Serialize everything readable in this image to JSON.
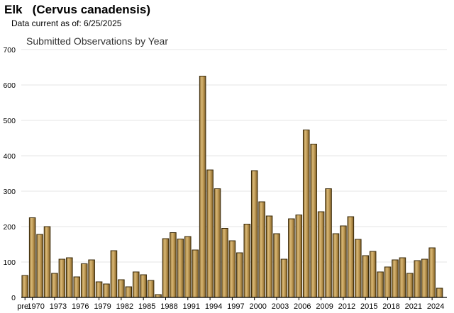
{
  "header": {
    "title": "Elk   (Cervus canadensis)",
    "subtitle": "Data current as of: 6/25/2025"
  },
  "chart_data": {
    "type": "bar",
    "title": "Submitted Observations by Year",
    "xlabel": "",
    "ylabel": "",
    "ylim": [
      0,
      700
    ],
    "yticks": [
      0,
      100,
      200,
      300,
      400,
      500,
      600,
      700
    ],
    "grid": true,
    "bar_color": "#c09a55",
    "bar_edge_color": "#3a2a0a",
    "categories": [
      "pre",
      "1970",
      "1971",
      "1972",
      "1973",
      "1974",
      "1975",
      "1976",
      "1977",
      "1978",
      "1979",
      "1980",
      "1981",
      "1982",
      "1983",
      "1984",
      "1985",
      "1986",
      "1987",
      "1988",
      "1989",
      "1990",
      "1991",
      "1992",
      "1993",
      "1994",
      "1995",
      "1996",
      "1997",
      "1998",
      "1999",
      "2000",
      "2001",
      "2002",
      "2003",
      "2004",
      "2005",
      "2006",
      "2007",
      "2008",
      "2009",
      "2010",
      "2011",
      "2012",
      "2013",
      "2014",
      "2015",
      "2016",
      "2017",
      "2018",
      "2019",
      "2020",
      "2021",
      "2022",
      "2023",
      "2024",
      "2025"
    ],
    "values": [
      62,
      225,
      178,
      200,
      68,
      108,
      112,
      58,
      95,
      106,
      44,
      38,
      132,
      50,
      30,
      72,
      64,
      48,
      8,
      166,
      183,
      165,
      172,
      134,
      625,
      360,
      307,
      195,
      160,
      126,
      207,
      358,
      270,
      230,
      180,
      108,
      222,
      233,
      473,
      433,
      242,
      307,
      180,
      202,
      228,
      164,
      118,
      130,
      72,
      86,
      106,
      112,
      68,
      104,
      108,
      140,
      26
    ],
    "x_tick_labels": [
      "pre",
      "1970",
      "1973",
      "1976",
      "1979",
      "1982",
      "1985",
      "1988",
      "1991",
      "1994",
      "1997",
      "2000",
      "2003",
      "2006",
      "2009",
      "2012",
      "2015",
      "2018",
      "2021",
      "2024"
    ]
  }
}
